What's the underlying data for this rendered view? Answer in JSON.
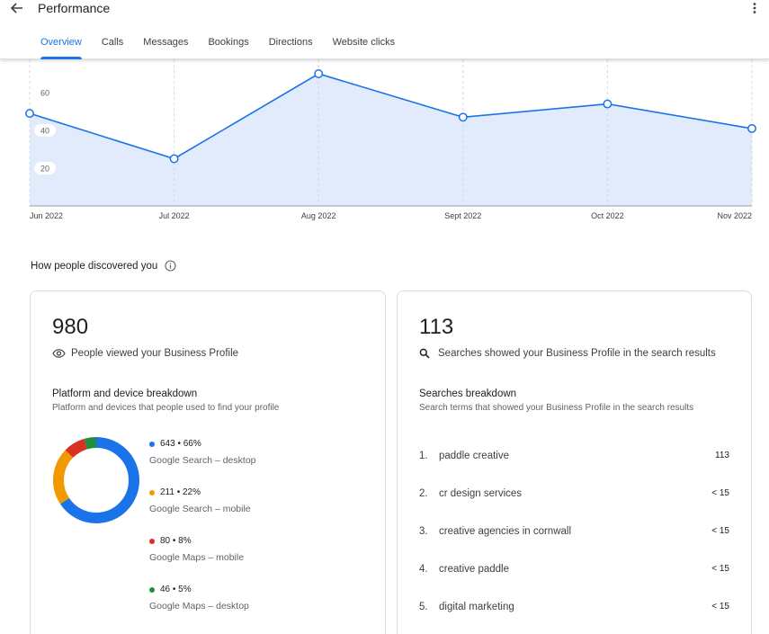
{
  "header": {
    "title": "Performance",
    "tabs": [
      {
        "label": "Overview",
        "active": true
      },
      {
        "label": "Calls"
      },
      {
        "label": "Messages"
      },
      {
        "label": "Bookings"
      },
      {
        "label": "Directions"
      },
      {
        "label": "Website clicks"
      }
    ]
  },
  "chart_data": {
    "type": "area",
    "categories": [
      "Jun 2022",
      "Jul 2022",
      "Aug 2022",
      "Sept 2022",
      "Oct 2022",
      "Nov 2022"
    ],
    "values": [
      49,
      25,
      70,
      47,
      54,
      41
    ],
    "y_ticks": [
      "20",
      "40",
      "60"
    ],
    "ylim": [
      0,
      80
    ],
    "grid": "vertical dashed",
    "colors": {
      "line": "#1a73e8",
      "fill": "#e1ebfc"
    }
  },
  "discovery": {
    "heading": "How people discovered you",
    "views": {
      "value": "980",
      "label": "People viewed your Business Profile",
      "breakdown_title": "Platform and device breakdown",
      "breakdown_desc": "Platform and devices that people used to find your profile",
      "platforms": [
        {
          "value": "643 • 66%",
          "label": "Google Search – desktop",
          "count": 643,
          "color": "#1a73e8"
        },
        {
          "value": "211 • 22%",
          "label": "Google Search – mobile",
          "count": 211,
          "color": "#f29900"
        },
        {
          "value": "80 • 8%",
          "label": "Google Maps – mobile",
          "count": 80,
          "color": "#d93025"
        },
        {
          "value": "46 • 5%",
          "label": "Google Maps – desktop",
          "count": 46,
          "color": "#1e8e3e"
        }
      ]
    },
    "searches": {
      "value": "113",
      "label": "Searches showed your Business Profile in the search results",
      "breakdown_title": "Searches breakdown",
      "breakdown_desc": "Search terms that showed your Business Profile in the search results",
      "terms": [
        {
          "index": "1.",
          "term": "paddle creative",
          "count": "113"
        },
        {
          "index": "2.",
          "term": "cr design services",
          "count": "< 15"
        },
        {
          "index": "3.",
          "term": "creative agencies in cornwall",
          "count": "< 15"
        },
        {
          "index": "4.",
          "term": "creative paddle",
          "count": "< 15"
        },
        {
          "index": "5.",
          "term": "digital marketing",
          "count": "< 15"
        }
      ]
    }
  }
}
